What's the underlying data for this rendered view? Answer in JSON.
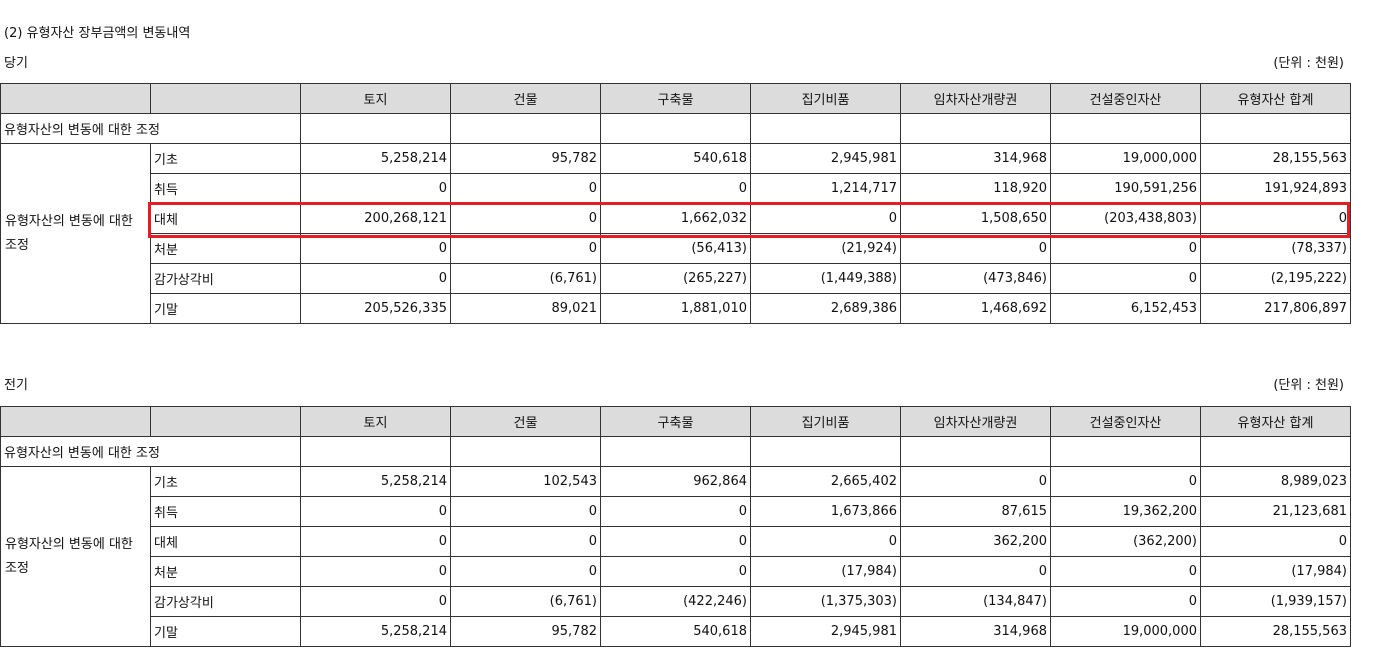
{
  "section_title": "(2) 유형자산 장부금액의 변동내역",
  "unit_label": "(단위 : 천원)",
  "columns": [
    "",
    "",
    "토지",
    "건물",
    "구축물",
    "집기비품",
    "임차자산개량권",
    "건설중인자산",
    "유형자산  합계"
  ],
  "section_row_label": "유형자산의 변동에 대한 조정",
  "group_label": "유형자산의 변동에 대한 조정",
  "current": {
    "title": "당기",
    "rows": [
      {
        "label": "기초",
        "values": [
          "5,258,214",
          "95,782",
          "540,618",
          "2,945,981",
          "314,968",
          "19,000,000",
          "28,155,563"
        ]
      },
      {
        "label": "취득",
        "values": [
          "0",
          "0",
          "0",
          "1,214,717",
          "118,920",
          "190,591,256",
          "191,924,893"
        ]
      },
      {
        "label": "대체",
        "values": [
          "200,268,121",
          "0",
          "1,662,032",
          "0",
          "1,508,650",
          "(203,438,803)",
          "0"
        ]
      },
      {
        "label": "처분",
        "values": [
          "0",
          "0",
          "(56,413)",
          "(21,924)",
          "0",
          "0",
          "(78,337)"
        ]
      },
      {
        "label": "감가상각비",
        "values": [
          "0",
          "(6,761)",
          "(265,227)",
          "(1,449,388)",
          "(473,846)",
          "0",
          "(2,195,222)"
        ]
      },
      {
        "label": "기말",
        "values": [
          "205,526,335",
          "89,021",
          "1,881,010",
          "2,689,386",
          "1,468,692",
          "6,152,453",
          "217,806,897"
        ]
      }
    ]
  },
  "prior": {
    "title": "전기",
    "rows": [
      {
        "label": "기초",
        "values": [
          "5,258,214",
          "102,543",
          "962,864",
          "2,665,402",
          "0",
          "0",
          "8,989,023"
        ]
      },
      {
        "label": "취득",
        "values": [
          "0",
          "0",
          "0",
          "1,673,866",
          "87,615",
          "19,362,200",
          "21,123,681"
        ]
      },
      {
        "label": "대체",
        "values": [
          "0",
          "0",
          "0",
          "0",
          "362,200",
          "(362,200)",
          "0"
        ]
      },
      {
        "label": "처분",
        "values": [
          "0",
          "0",
          "0",
          "(17,984)",
          "0",
          "0",
          "(17,984)"
        ]
      },
      {
        "label": "감가상각비",
        "values": [
          "0",
          "(6,761)",
          "(422,246)",
          "(1,375,303)",
          "(134,847)",
          "0",
          "(1,939,157)"
        ]
      },
      {
        "label": "기말",
        "values": [
          "5,258,214",
          "95,782",
          "540,618",
          "2,945,981",
          "314,968",
          "19,000,000",
          "28,155,563"
        ]
      }
    ]
  },
  "highlight_color": "#e31e25",
  "header_bg": "#dcdcdc"
}
